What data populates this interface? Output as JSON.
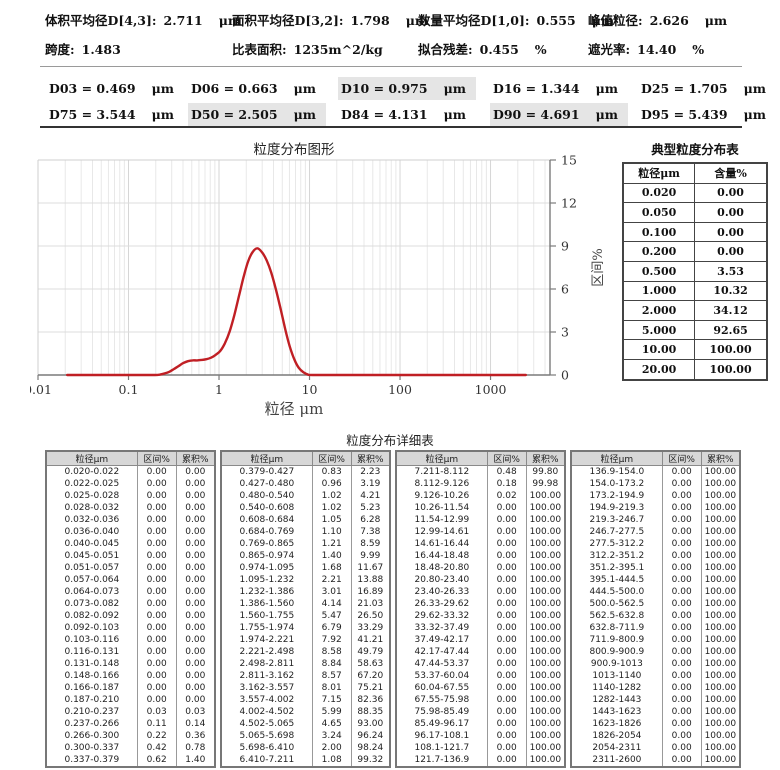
{
  "header": {
    "stats": [
      {
        "label": "体积平均径D[4,3]:",
        "value": "2.711",
        "unit": "μm"
      },
      {
        "label": "面积平均径D[3,2]:",
        "value": "1.798",
        "unit": "μm"
      },
      {
        "label": "数量平均径D[1,0]:",
        "value": "0.555",
        "unit": "μm"
      },
      {
        "label": "峰值粒径:",
        "value": "2.626",
        "unit": "μm"
      },
      {
        "label": "跨度:",
        "value": "1.483",
        "unit": ""
      },
      {
        "label": "比表面积:",
        "value": "1235m^2/kg",
        "unit": ""
      },
      {
        "label": "拟合残差:",
        "value": "0.455",
        "unit": "%"
      },
      {
        "label": "遮光率:",
        "value": "14.40",
        "unit": "%"
      }
    ],
    "percentiles": [
      {
        "name": "D03",
        "value": "0.469",
        "unit": "μm",
        "highlight": false
      },
      {
        "name": "D06",
        "value": "0.663",
        "unit": "μm",
        "highlight": false
      },
      {
        "name": "D10",
        "value": "0.975",
        "unit": "μm",
        "highlight": true
      },
      {
        "name": "D16",
        "value": "1.344",
        "unit": "μm",
        "highlight": false
      },
      {
        "name": "D25",
        "value": "1.705",
        "unit": "μm",
        "highlight": false
      },
      {
        "name": "D75",
        "value": "3.544",
        "unit": "μm",
        "highlight": false
      },
      {
        "name": "D50",
        "value": "2.505",
        "unit": "μm",
        "highlight": true
      },
      {
        "name": "D84",
        "value": "4.131",
        "unit": "μm",
        "highlight": false
      },
      {
        "name": "D90",
        "value": "4.691",
        "unit": "μm",
        "highlight": true
      },
      {
        "name": "D95",
        "value": "5.439",
        "unit": "μm",
        "highlight": false
      }
    ]
  },
  "chart_data": {
    "type": "line",
    "title": "粒度分布图形",
    "xlabel": "粒径 μm",
    "ylabel": "区间%",
    "x_scale": "log",
    "xlim": [
      0.01,
      4540
    ],
    "ylim": [
      0,
      15
    ],
    "x_ticks": [
      0.01,
      0.1,
      1,
      10,
      100,
      1000
    ],
    "y_ticks": [
      0,
      3,
      6,
      9,
      12,
      15
    ],
    "grid": true,
    "line_color": "#c01f24",
    "series": [
      {
        "name": "区间%",
        "x": [
          0.021,
          0.05,
          0.1,
          0.15,
          0.198,
          0.223,
          0.251,
          0.282,
          0.318,
          0.357,
          0.402,
          0.453,
          0.509,
          0.573,
          0.645,
          0.725,
          0.816,
          0.918,
          1.033,
          1.161,
          1.307,
          1.47,
          1.655,
          1.861,
          2.094,
          2.355,
          2.65,
          2.981,
          3.354,
          3.773,
          4.244,
          4.775,
          5.372,
          6.043,
          6.799,
          7.648,
          8.604,
          9.676,
          10.88,
          20,
          100,
          1000,
          2451
        ],
        "y": [
          0,
          0,
          0,
          0,
          0,
          0.03,
          0.11,
          0.22,
          0.42,
          0.62,
          0.83,
          0.96,
          1.02,
          1.02,
          1.05,
          1.1,
          1.21,
          1.4,
          1.68,
          2.21,
          3.01,
          4.14,
          5.47,
          6.79,
          7.92,
          8.58,
          8.84,
          8.57,
          8.01,
          7.15,
          5.99,
          4.65,
          3.24,
          2.0,
          1.08,
          0.48,
          0.18,
          0.02,
          0,
          0,
          0,
          0,
          0
        ]
      }
    ]
  },
  "typical_table": {
    "title": "典型粒度分布表",
    "headers": [
      "粒径μm",
      "含量%"
    ],
    "rows": [
      [
        "0.020",
        "0.00"
      ],
      [
        "0.050",
        "0.00"
      ],
      [
        "0.100",
        "0.00"
      ],
      [
        "0.200",
        "0.00"
      ],
      [
        "0.500",
        "3.53"
      ],
      [
        "1.000",
        "10.32"
      ],
      [
        "2.000",
        "34.12"
      ],
      [
        "5.000",
        "92.65"
      ],
      [
        "10.00",
        "100.00"
      ],
      [
        "20.00",
        "100.00"
      ]
    ]
  },
  "detail_table": {
    "title": "粒度分布详细表",
    "headers": [
      "粒径μm",
      "区间%",
      "累积%"
    ],
    "groups": [
      [
        [
          "0.020-0.022",
          "0.00",
          "0.00"
        ],
        [
          "0.022-0.025",
          "0.00",
          "0.00"
        ],
        [
          "0.025-0.028",
          "0.00",
          "0.00"
        ],
        [
          "0.028-0.032",
          "0.00",
          "0.00"
        ],
        [
          "0.032-0.036",
          "0.00",
          "0.00"
        ],
        [
          "0.036-0.040",
          "0.00",
          "0.00"
        ],
        [
          "0.040-0.045",
          "0.00",
          "0.00"
        ],
        [
          "0.045-0.051",
          "0.00",
          "0.00"
        ],
        [
          "0.051-0.057",
          "0.00",
          "0.00"
        ],
        [
          "0.057-0.064",
          "0.00",
          "0.00"
        ],
        [
          "0.064-0.073",
          "0.00",
          "0.00"
        ],
        [
          "0.073-0.082",
          "0.00",
          "0.00"
        ],
        [
          "0.082-0.092",
          "0.00",
          "0.00"
        ],
        [
          "0.092-0.103",
          "0.00",
          "0.00"
        ],
        [
          "0.103-0.116",
          "0.00",
          "0.00"
        ],
        [
          "0.116-0.131",
          "0.00",
          "0.00"
        ],
        [
          "0.131-0.148",
          "0.00",
          "0.00"
        ],
        [
          "0.148-0.166",
          "0.00",
          "0.00"
        ],
        [
          "0.166-0.187",
          "0.00",
          "0.00"
        ],
        [
          "0.187-0.210",
          "0.00",
          "0.00"
        ],
        [
          "0.210-0.237",
          "0.03",
          "0.03"
        ],
        [
          "0.237-0.266",
          "0.11",
          "0.14"
        ],
        [
          "0.266-0.300",
          "0.22",
          "0.36"
        ],
        [
          "0.300-0.337",
          "0.42",
          "0.78"
        ],
        [
          "0.337-0.379",
          "0.62",
          "1.40"
        ]
      ],
      [
        [
          "0.379-0.427",
          "0.83",
          "2.23"
        ],
        [
          "0.427-0.480",
          "0.96",
          "3.19"
        ],
        [
          "0.480-0.540",
          "1.02",
          "4.21"
        ],
        [
          "0.540-0.608",
          "1.02",
          "5.23"
        ],
        [
          "0.608-0.684",
          "1.05",
          "6.28"
        ],
        [
          "0.684-0.769",
          "1.10",
          "7.38"
        ],
        [
          "0.769-0.865",
          "1.21",
          "8.59"
        ],
        [
          "0.865-0.974",
          "1.40",
          "9.99"
        ],
        [
          "0.974-1.095",
          "1.68",
          "11.67"
        ],
        [
          "1.095-1.232",
          "2.21",
          "13.88"
        ],
        [
          "1.232-1.386",
          "3.01",
          "16.89"
        ],
        [
          "1.386-1.560",
          "4.14",
          "21.03"
        ],
        [
          "1.560-1.755",
          "5.47",
          "26.50"
        ],
        [
          "1.755-1.974",
          "6.79",
          "33.29"
        ],
        [
          "1.974-2.221",
          "7.92",
          "41.21"
        ],
        [
          "2.221-2.498",
          "8.58",
          "49.79"
        ],
        [
          "2.498-2.811",
          "8.84",
          "58.63"
        ],
        [
          "2.811-3.162",
          "8.57",
          "67.20"
        ],
        [
          "3.162-3.557",
          "8.01",
          "75.21"
        ],
        [
          "3.557-4.002",
          "7.15",
          "82.36"
        ],
        [
          "4.002-4.502",
          "5.99",
          "88.35"
        ],
        [
          "4.502-5.065",
          "4.65",
          "93.00"
        ],
        [
          "5.065-5.698",
          "3.24",
          "96.24"
        ],
        [
          "5.698-6.410",
          "2.00",
          "98.24"
        ],
        [
          "6.410-7.211",
          "1.08",
          "99.32"
        ]
      ],
      [
        [
          "7.211-8.112",
          "0.48",
          "99.80"
        ],
        [
          "8.112-9.126",
          "0.18",
          "99.98"
        ],
        [
          "9.126-10.26",
          "0.02",
          "100.00"
        ],
        [
          "10.26-11.54",
          "0.00",
          "100.00"
        ],
        [
          "11.54-12.99",
          "0.00",
          "100.00"
        ],
        [
          "12.99-14.61",
          "0.00",
          "100.00"
        ],
        [
          "14.61-16.44",
          "0.00",
          "100.00"
        ],
        [
          "16.44-18.48",
          "0.00",
          "100.00"
        ],
        [
          "18.48-20.80",
          "0.00",
          "100.00"
        ],
        [
          "20.80-23.40",
          "0.00",
          "100.00"
        ],
        [
          "23.40-26.33",
          "0.00",
          "100.00"
        ],
        [
          "26.33-29.62",
          "0.00",
          "100.00"
        ],
        [
          "29.62-33.32",
          "0.00",
          "100.00"
        ],
        [
          "33.32-37.49",
          "0.00",
          "100.00"
        ],
        [
          "37.49-42.17",
          "0.00",
          "100.00"
        ],
        [
          "42.17-47.44",
          "0.00",
          "100.00"
        ],
        [
          "47.44-53.37",
          "0.00",
          "100.00"
        ],
        [
          "53.37-60.04",
          "0.00",
          "100.00"
        ],
        [
          "60.04-67.55",
          "0.00",
          "100.00"
        ],
        [
          "67.55-75.98",
          "0.00",
          "100.00"
        ],
        [
          "75.98-85.49",
          "0.00",
          "100.00"
        ],
        [
          "85.49-96.17",
          "0.00",
          "100.00"
        ],
        [
          "96.17-108.1",
          "0.00",
          "100.00"
        ],
        [
          "108.1-121.7",
          "0.00",
          "100.00"
        ],
        [
          "121.7-136.9",
          "0.00",
          "100.00"
        ]
      ],
      [
        [
          "136.9-154.0",
          "0.00",
          "100.00"
        ],
        [
          "154.0-173.2",
          "0.00",
          "100.00"
        ],
        [
          "173.2-194.9",
          "0.00",
          "100.00"
        ],
        [
          "194.9-219.3",
          "0.00",
          "100.00"
        ],
        [
          "219.3-246.7",
          "0.00",
          "100.00"
        ],
        [
          "246.7-277.5",
          "0.00",
          "100.00"
        ],
        [
          "277.5-312.2",
          "0.00",
          "100.00"
        ],
        [
          "312.2-351.2",
          "0.00",
          "100.00"
        ],
        [
          "351.2-395.1",
          "0.00",
          "100.00"
        ],
        [
          "395.1-444.5",
          "0.00",
          "100.00"
        ],
        [
          "444.5-500.0",
          "0.00",
          "100.00"
        ],
        [
          "500.0-562.5",
          "0.00",
          "100.00"
        ],
        [
          "562.5-632.8",
          "0.00",
          "100.00"
        ],
        [
          "632.8-711.9",
          "0.00",
          "100.00"
        ],
        [
          "711.9-800.9",
          "0.00",
          "100.00"
        ],
        [
          "800.9-900.9",
          "0.00",
          "100.00"
        ],
        [
          "900.9-1013",
          "0.00",
          "100.00"
        ],
        [
          "1013-1140",
          "0.00",
          "100.00"
        ],
        [
          "1140-1282",
          "0.00",
          "100.00"
        ],
        [
          "1282-1443",
          "0.00",
          "100.00"
        ],
        [
          "1443-1623",
          "0.00",
          "100.00"
        ],
        [
          "1623-1826",
          "0.00",
          "100.00"
        ],
        [
          "1826-2054",
          "0.00",
          "100.00"
        ],
        [
          "2054-2311",
          "0.00",
          "100.00"
        ],
        [
          "2311-2600",
          "0.00",
          "100.00"
        ]
      ]
    ]
  }
}
